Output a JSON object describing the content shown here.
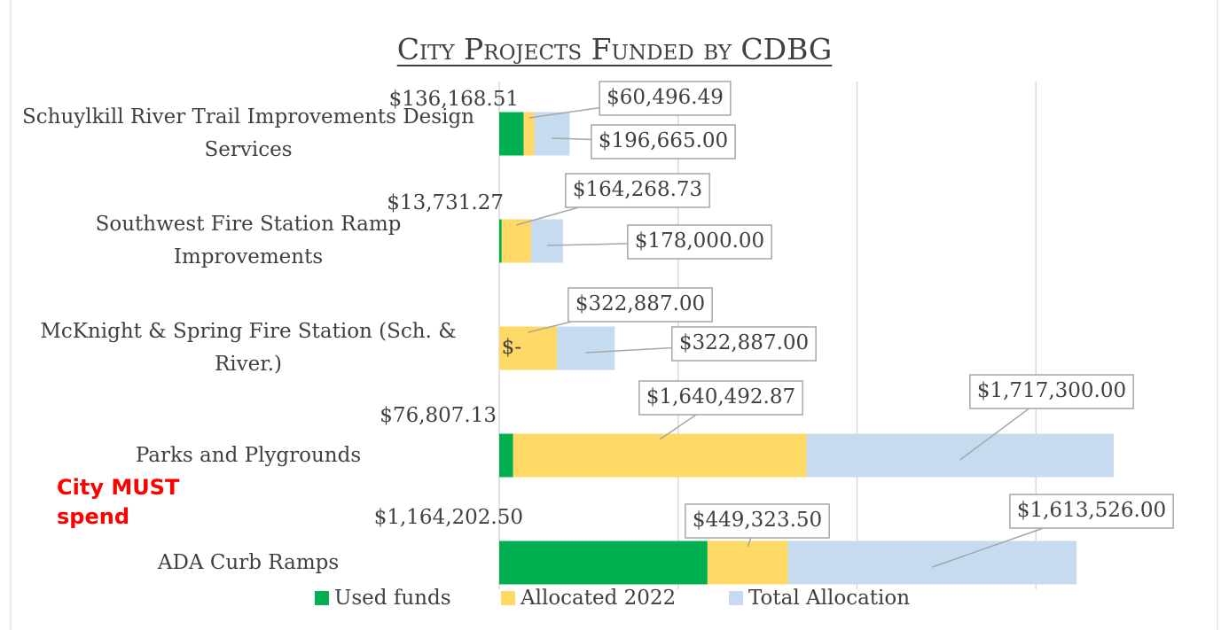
{
  "chart_data": {
    "type": "stacked-barh",
    "title": "City Projects Funded by CDBG",
    "annotation": "City MUST spend",
    "categories": [
      "Schuylkill River Trail Improvements Design Services",
      "Southwest Fire Station Ramp Improvements",
      "McKnight & Spring Fire Station (Sch. & River.)",
      "Parks and Plygrounds",
      "ADA Curb Ramps"
    ],
    "series": [
      {
        "name": "Used funds",
        "color": "#00b050",
        "values": [
          136168.51,
          13731.27,
          0,
          76807.13,
          1164202.5
        ],
        "value_labels": [
          "$136,168.51",
          "$13,731.27",
          "$-",
          "$76,807.13",
          "$1,164,202.50"
        ]
      },
      {
        "name": "Allocated 2022",
        "color": "#ffd966",
        "values": [
          60496.49,
          164268.73,
          322887,
          1640492.87,
          449323.5
        ],
        "value_labels": [
          "$60,496.49",
          "$164,268.73",
          "$322,887.00",
          "$1,640,492.87",
          "$449,323.50"
        ]
      },
      {
        "name": "Total Allocation",
        "color": "#c6dbef",
        "values": [
          196665,
          178000,
          322887,
          1717300,
          1613526
        ],
        "value_labels": [
          "$196,665.00",
          "$178,000.00",
          "$322,887.00",
          "$1,717,300.00",
          "$1,613,526.00"
        ]
      }
    ],
    "xlim": [
      0,
      4000000
    ],
    "xticks": [
      0,
      1000000,
      2000000,
      3000000
    ],
    "grid": true,
    "legend": "bottom"
  }
}
